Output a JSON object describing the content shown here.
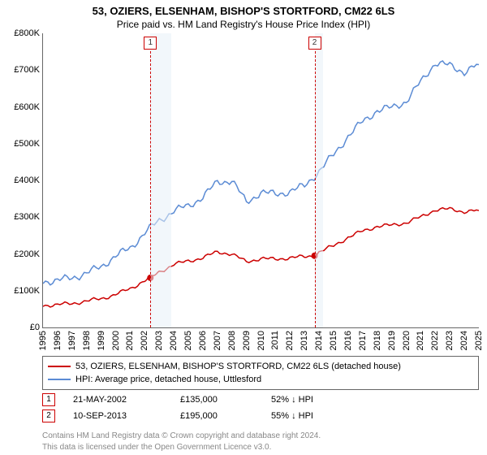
{
  "title": "53, OZIERS, ELSENHAM, BISHOP'S STORTFORD, CM22 6LS",
  "subtitle": "Price paid vs. HM Land Registry's House Price Index (HPI)",
  "chart": {
    "type": "line",
    "x_axis": {
      "min": 1995,
      "max": 2025,
      "ticks": [
        1995,
        1996,
        1997,
        1998,
        1999,
        2000,
        2001,
        2002,
        2003,
        2004,
        2005,
        2006,
        2007,
        2008,
        2009,
        2010,
        2011,
        2012,
        2013,
        2014,
        2015,
        2016,
        2017,
        2018,
        2019,
        2020,
        2021,
        2022,
        2023,
        2024,
        2025
      ],
      "label_rotation": -90,
      "label_fontsize": 11
    },
    "y_axis": {
      "min": 0,
      "max": 800000,
      "ticks": [
        0,
        100000,
        200000,
        300000,
        400000,
        500000,
        600000,
        700000,
        800000
      ],
      "tick_labels": [
        "£0",
        "£100K",
        "£200K",
        "£300K",
        "£400K",
        "£500K",
        "£600K",
        "£700K",
        "£800K"
      ],
      "label_fontsize": 11
    },
    "shade_bands": [
      {
        "from": 2002.39,
        "to": 2003.8,
        "color": "#e8f0f8"
      },
      {
        "from": 2013.69,
        "to": 2014.25,
        "color": "#e8f0f8"
      }
    ],
    "markers": [
      {
        "index": 1,
        "x": 2002.39,
        "y": 135000,
        "label": "1"
      },
      {
        "index": 2,
        "x": 2013.69,
        "y": 195000,
        "label": "2"
      }
    ],
    "marker_box_border": "#cc0000",
    "series": [
      {
        "id": "paid",
        "label": "53, OZIERS, ELSENHAM, BISHOP'S STORTFORD, CM22 6LS (detached house)",
        "color": "#cc0000",
        "line_width": 1.5,
        "points": [
          [
            1995,
            60000
          ],
          [
            1996,
            62000
          ],
          [
            1997,
            65000
          ],
          [
            1998,
            72000
          ],
          [
            1999,
            78000
          ],
          [
            2000,
            90000
          ],
          [
            2001,
            105000
          ],
          [
            2002,
            128000
          ],
          [
            2002.39,
            135000
          ],
          [
            2003,
            150000
          ],
          [
            2004,
            172000
          ],
          [
            2005,
            180000
          ],
          [
            2006,
            190000
          ],
          [
            2007,
            205000
          ],
          [
            2008,
            200000
          ],
          [
            2009,
            178000
          ],
          [
            2010,
            188000
          ],
          [
            2011,
            185000
          ],
          [
            2012,
            190000
          ],
          [
            2013,
            192000
          ],
          [
            2013.69,
            195000
          ],
          [
            2014,
            205000
          ],
          [
            2015,
            222000
          ],
          [
            2016,
            245000
          ],
          [
            2017,
            262000
          ],
          [
            2018,
            275000
          ],
          [
            2019,
            278000
          ],
          [
            2020,
            285000
          ],
          [
            2021,
            300000
          ],
          [
            2022,
            320000
          ],
          [
            2023,
            322000
          ],
          [
            2024,
            315000
          ],
          [
            2025,
            318000
          ]
        ]
      },
      {
        "id": "hpi",
        "label": "HPI: Average price, detached house, Uttlesford",
        "color": "#5b8bd4",
        "line_width": 1.5,
        "points": [
          [
            1995,
            125000
          ],
          [
            1996,
            128000
          ],
          [
            1997,
            135000
          ],
          [
            1998,
            148000
          ],
          [
            1999,
            165000
          ],
          [
            2000,
            195000
          ],
          [
            2001,
            215000
          ],
          [
            2002,
            258000
          ],
          [
            2003,
            290000
          ],
          [
            2004,
            318000
          ],
          [
            2005,
            330000
          ],
          [
            2006,
            355000
          ],
          [
            2007,
            395000
          ],
          [
            2008,
            400000
          ],
          [
            2009,
            340000
          ],
          [
            2010,
            368000
          ],
          [
            2011,
            362000
          ],
          [
            2012,
            370000
          ],
          [
            2013,
            385000
          ],
          [
            2014,
            425000
          ],
          [
            2015,
            470000
          ],
          [
            2016,
            520000
          ],
          [
            2017,
            560000
          ],
          [
            2018,
            590000
          ],
          [
            2019,
            598000
          ],
          [
            2020,
            615000
          ],
          [
            2021,
            668000
          ],
          [
            2022,
            720000
          ],
          [
            2023,
            712000
          ],
          [
            2024,
            695000
          ],
          [
            2025,
            715000
          ]
        ]
      }
    ]
  },
  "legend": {
    "items": [
      {
        "color": "#cc0000",
        "label": "53, OZIERS, ELSENHAM, BISHOP'S STORTFORD, CM22 6LS (detached house)"
      },
      {
        "color": "#5b8bd4",
        "label": "HPI: Average price, detached house, Uttlesford"
      }
    ]
  },
  "transactions": [
    {
      "marker": "1",
      "date": "21-MAY-2002",
      "price": "£135,000",
      "pct": "52% ↓ HPI"
    },
    {
      "marker": "2",
      "date": "10-SEP-2013",
      "price": "£195,000",
      "pct": "55% ↓ HPI"
    }
  ],
  "footer": {
    "line1": "Contains HM Land Registry data © Crown copyright and database right 2024.",
    "line2": "This data is licensed under the Open Government Licence v3.0."
  }
}
